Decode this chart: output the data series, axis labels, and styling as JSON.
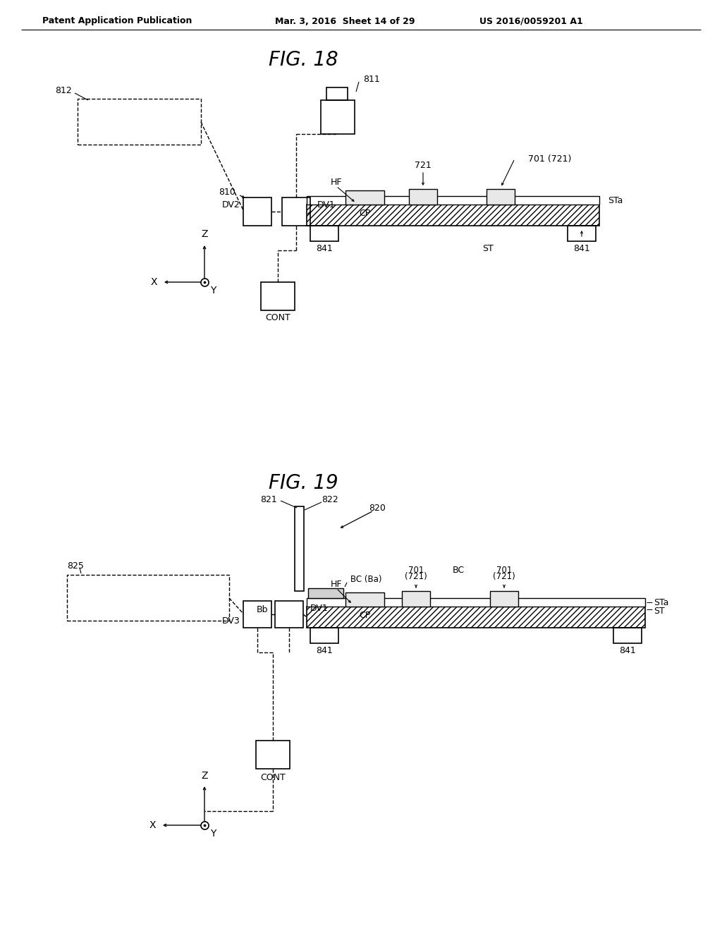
{
  "bg_color": "#ffffff",
  "header_left": "Patent Application Publication",
  "header_mid": "Mar. 3, 2016  Sheet 14 of 29",
  "header_right": "US 2016/0059201 A1",
  "fig18_title": "FIG. 18",
  "fig19_title": "FIG. 19"
}
